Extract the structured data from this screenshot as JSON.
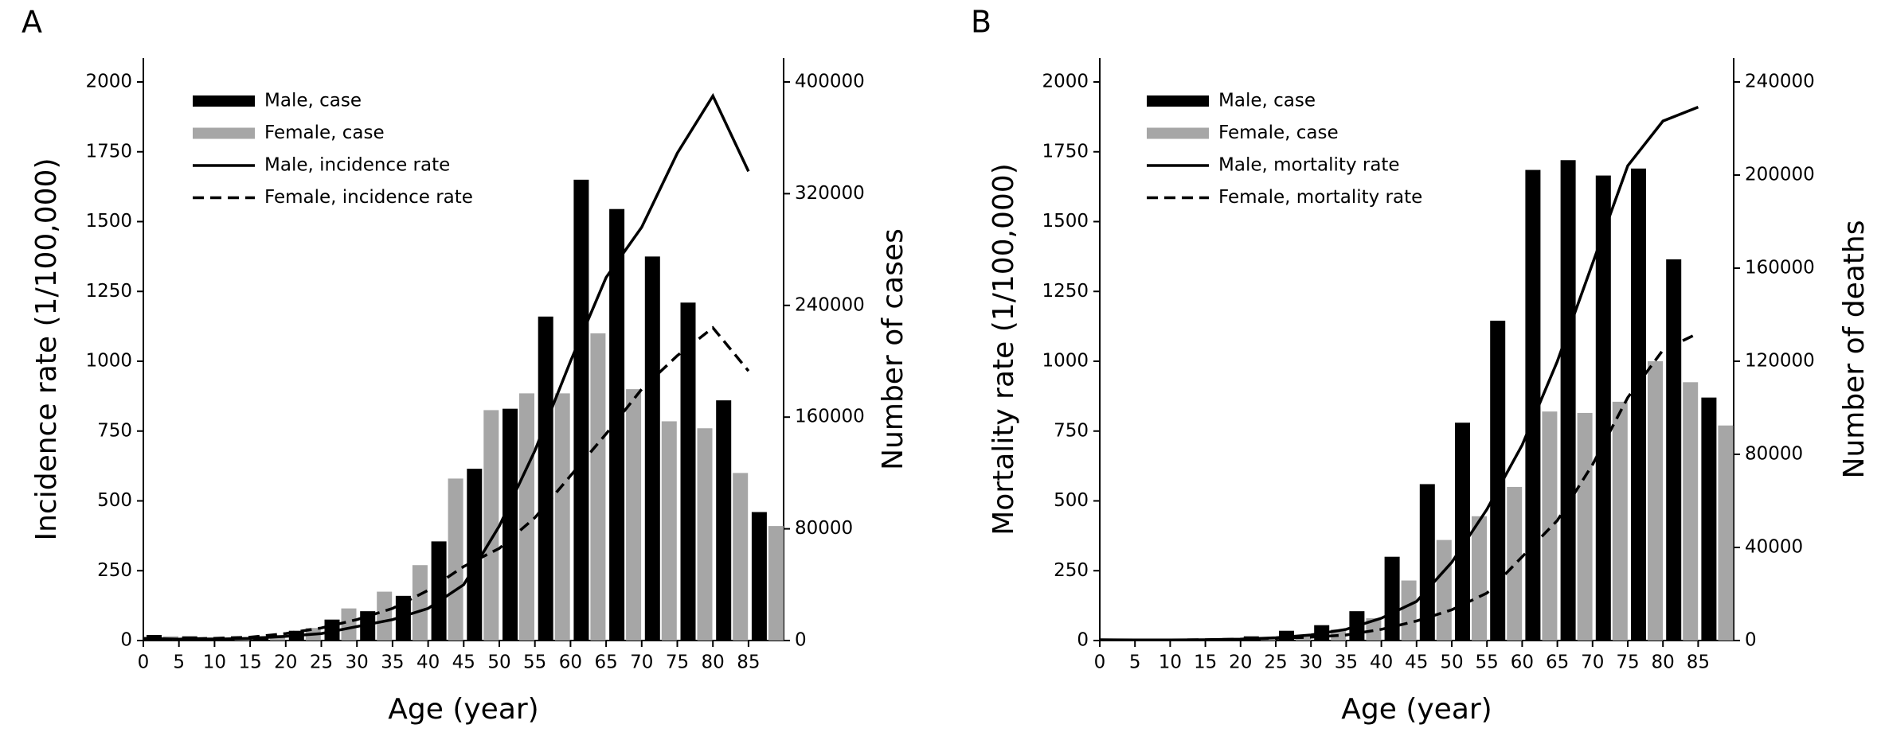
{
  "chart_data": [
    {
      "type": "bar",
      "panel": "A",
      "x_label": "Age (year)",
      "y_label": "Incidence rate (1/100,000)",
      "y2_label": "Number of cases",
      "categories": [
        "0",
        "5",
        "10",
        "15",
        "20",
        "25",
        "30",
        "35",
        "40",
        "45",
        "50",
        "55",
        "60",
        "65",
        "70",
        "75",
        "80",
        "85"
      ],
      "ylim": [
        0,
        2100
      ],
      "yticks": [
        0,
        250,
        500,
        750,
        1000,
        1250,
        1500,
        1750,
        2000
      ],
      "y2lim": [
        0,
        420000
      ],
      "y2ticks": [
        0,
        80000,
        160000,
        240000,
        320000,
        400000
      ],
      "series": [
        {
          "name": "Male, case",
          "type": "bar",
          "axis": "y2",
          "color": "#000000",
          "values": [
            4000,
            3000,
            2000,
            3000,
            7000,
            15000,
            21000,
            32000,
            71000,
            123000,
            166000,
            232000,
            330000,
            309000,
            275000,
            242000,
            172000,
            92000
          ]
        },
        {
          "name": "Female, case",
          "type": "bar",
          "axis": "y2",
          "color": "#a6a6a6",
          "values": [
            3000,
            2400,
            1600,
            4000,
            9000,
            23000,
            35000,
            54000,
            116000,
            165000,
            177000,
            177000,
            220000,
            180000,
            157000,
            152000,
            120000,
            82000
          ]
        },
        {
          "name": "Male, incidence rate",
          "type": "line",
          "style": "solid",
          "color": "#000000",
          "values": [
            8,
            5,
            5,
            8,
            15,
            25,
            50,
            75,
            115,
            200,
            410,
            680,
            1000,
            1300,
            1480,
            1745,
            1950,
            1680
          ]
        },
        {
          "name": "Female, incidence rate",
          "type": "line",
          "style": "dashed",
          "color": "#000000",
          "values": [
            5,
            5,
            8,
            12,
            25,
            45,
            75,
            115,
            180,
            265,
            330,
            440,
            590,
            740,
            900,
            1020,
            1120,
            965
          ]
        }
      ]
    },
    {
      "type": "bar",
      "panel": "B",
      "x_label": "Age (year)",
      "y_label": "Mortality rate (1/100,000)",
      "y2_label": "Number of deaths",
      "categories": [
        "0",
        "5",
        "10",
        "15",
        "20",
        "25",
        "30",
        "35",
        "40",
        "45",
        "50",
        "55",
        "60",
        "65",
        "70",
        "75",
        "80",
        "85"
      ],
      "ylim": [
        0,
        2100
      ],
      "yticks": [
        0,
        250,
        500,
        750,
        1000,
        1250,
        1500,
        1750,
        2000
      ],
      "y2lim": [
        0,
        252000
      ],
      "y2ticks": [
        0,
        40000,
        80000,
        120000,
        160000,
        200000,
        240000
      ],
      "series": [
        {
          "name": "Male, case",
          "type": "bar",
          "axis": "y2",
          "color": "#000000",
          "values": [
            600,
            600,
            240,
            600,
            1800,
            4200,
            6600,
            12600,
            36000,
            67200,
            93600,
            137400,
            202200,
            206400,
            199800,
            202800,
            163800,
            104400
          ]
        },
        {
          "name": "Female, case",
          "type": "bar",
          "axis": "y2",
          "color": "#a6a6a6",
          "values": [
            360,
            360,
            240,
            360,
            600,
            2400,
            4800,
            9600,
            25800,
            43200,
            53400,
            66000,
            98400,
            97800,
            102600,
            120000,
            111000,
            92400
          ]
        },
        {
          "name": "Male, mortality rate",
          "type": "line",
          "style": "solid",
          "color": "#000000",
          "values": [
            3,
            2,
            2,
            3,
            5,
            10,
            20,
            40,
            80,
            140,
            280,
            470,
            700,
            1000,
            1350,
            1700,
            1860,
            1910
          ]
        },
        {
          "name": "Female, mortality rate",
          "type": "line",
          "style": "dashed",
          "color": "#000000",
          "values": [
            2,
            2,
            2,
            3,
            5,
            8,
            12,
            20,
            40,
            70,
            110,
            170,
            300,
            430,
            630,
            870,
            1040,
            1100
          ]
        }
      ]
    }
  ]
}
